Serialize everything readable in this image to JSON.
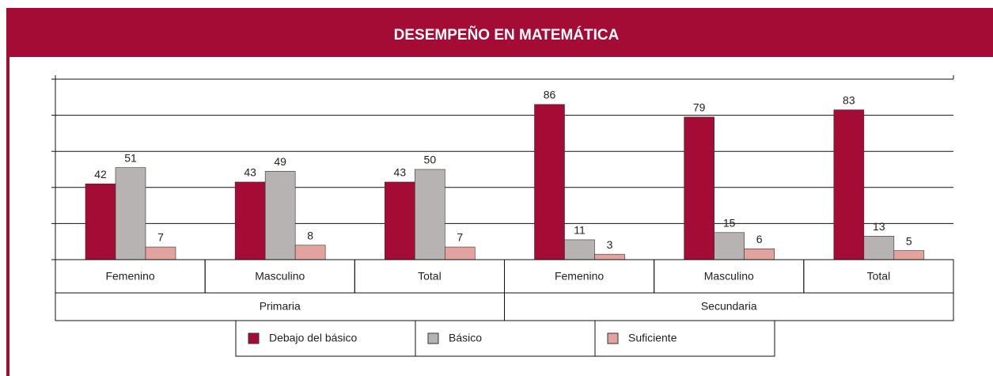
{
  "chart_data": {
    "type": "bar",
    "title": "DESEMPEÑO EN MATEMÁTICA",
    "categories": [
      "Femenino",
      "Masculino",
      "Total",
      "Femenino",
      "Masculino",
      "Total"
    ],
    "groups": [
      "Primaria",
      "Secundaria"
    ],
    "series": [
      {
        "name": "Debajo del básico",
        "color": "#a50c35",
        "values": [
          42,
          43,
          43,
          86,
          79,
          83
        ]
      },
      {
        "name": "Básico",
        "color": "#b8b3b3",
        "values": [
          51,
          49,
          50,
          11,
          15,
          13
        ]
      },
      {
        "name": "Suficiente",
        "color": "#e2a29d",
        "values": [
          7,
          8,
          7,
          3,
          6,
          5
        ]
      }
    ],
    "ylim": [
      0,
      100
    ],
    "yticks": [
      0,
      20,
      40,
      60,
      80,
      100
    ],
    "grid": true
  }
}
